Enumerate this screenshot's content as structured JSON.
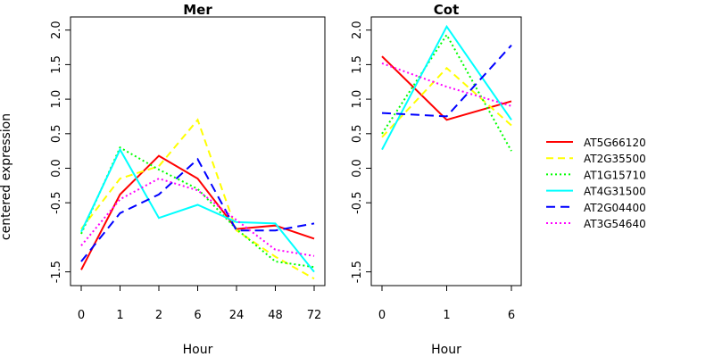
{
  "chart_data": [
    {
      "type": "line",
      "title": "Mer",
      "xlabel": "Hour",
      "ylabel": "centered expression",
      "categories": [
        "0",
        "1",
        "2",
        "6",
        "24",
        "48",
        "72"
      ],
      "y_ticks": [
        "-1.5",
        "-0.5",
        "0.0",
        "0.5",
        "1.0",
        "1.5",
        "2.0"
      ],
      "ylim": [
        -1.65,
        2.2
      ],
      "series": [
        {
          "name": "AT5G66120",
          "color": "#ff0000",
          "dash": "solid",
          "values": [
            -1.47,
            -0.38,
            0.18,
            -0.15,
            -0.88,
            -0.83,
            -1.02
          ]
        },
        {
          "name": "AT2G35500",
          "color": "#ffff00",
          "dash": "dashed",
          "values": [
            -0.88,
            -0.15,
            0.03,
            0.7,
            -0.9,
            -1.28,
            -1.6
          ]
        },
        {
          "name": "AT1G15710",
          "color": "#00ff00",
          "dash": "dotted",
          "values": [
            -0.95,
            0.3,
            -0.02,
            -0.3,
            -0.88,
            -1.35,
            -1.43
          ]
        },
        {
          "name": "AT4G31500",
          "color": "#00ffff",
          "dash": "solid",
          "values": [
            -0.92,
            0.27,
            -0.72,
            -0.53,
            -0.78,
            -0.8,
            -1.5
          ]
        },
        {
          "name": "AT2G04400",
          "color": "#0000ff",
          "dash": "longdash",
          "values": [
            -1.35,
            -0.65,
            -0.38,
            0.13,
            -0.9,
            -0.9,
            -0.8
          ]
        },
        {
          "name": "AT3G54640",
          "color": "#ff00ff",
          "dash": "dotted",
          "values": [
            -1.12,
            -0.45,
            -0.15,
            -0.32,
            -0.75,
            -1.18,
            -1.27
          ]
        }
      ]
    },
    {
      "type": "line",
      "title": "Cot",
      "xlabel": "Hour",
      "ylabel": "",
      "categories": [
        "0",
        "1",
        "6"
      ],
      "y_ticks": [
        "-1.5",
        "-0.5",
        "0.0",
        "0.5",
        "1.0",
        "1.5",
        "2.0"
      ],
      "ylim": [
        -1.65,
        2.2
      ],
      "series": [
        {
          "name": "AT5G66120",
          "color": "#ff0000",
          "dash": "solid",
          "values": [
            1.62,
            0.7,
            0.97
          ]
        },
        {
          "name": "AT2G35500",
          "color": "#ffff00",
          "dash": "dashed",
          "values": [
            0.45,
            1.45,
            0.62
          ]
        },
        {
          "name": "AT1G15710",
          "color": "#00ff00",
          "dash": "dotted",
          "values": [
            0.5,
            1.93,
            0.25
          ]
        },
        {
          "name": "AT4G31500",
          "color": "#00ffff",
          "dash": "solid",
          "values": [
            0.27,
            2.05,
            0.7
          ]
        },
        {
          "name": "AT2G04400",
          "color": "#0000ff",
          "dash": "longdash",
          "values": [
            0.8,
            0.75,
            1.78
          ]
        },
        {
          "name": "AT3G54640",
          "color": "#ff00ff",
          "dash": "dotted",
          "values": [
            1.52,
            1.18,
            0.9
          ]
        }
      ]
    }
  ],
  "legend": {
    "placement": "right",
    "entries": [
      {
        "label": "AT5G66120",
        "color": "#ff0000",
        "dash": "solid"
      },
      {
        "label": "AT2G35500",
        "color": "#ffff00",
        "dash": "dashed"
      },
      {
        "label": "AT1G15710",
        "color": "#00ff00",
        "dash": "dotted"
      },
      {
        "label": "AT4G31500",
        "color": "#00ffff",
        "dash": "solid"
      },
      {
        "label": "AT2G04400",
        "color": "#0000ff",
        "dash": "longdash"
      },
      {
        "label": "AT3G54640",
        "color": "#ff00ff",
        "dash": "dotted"
      }
    ]
  }
}
